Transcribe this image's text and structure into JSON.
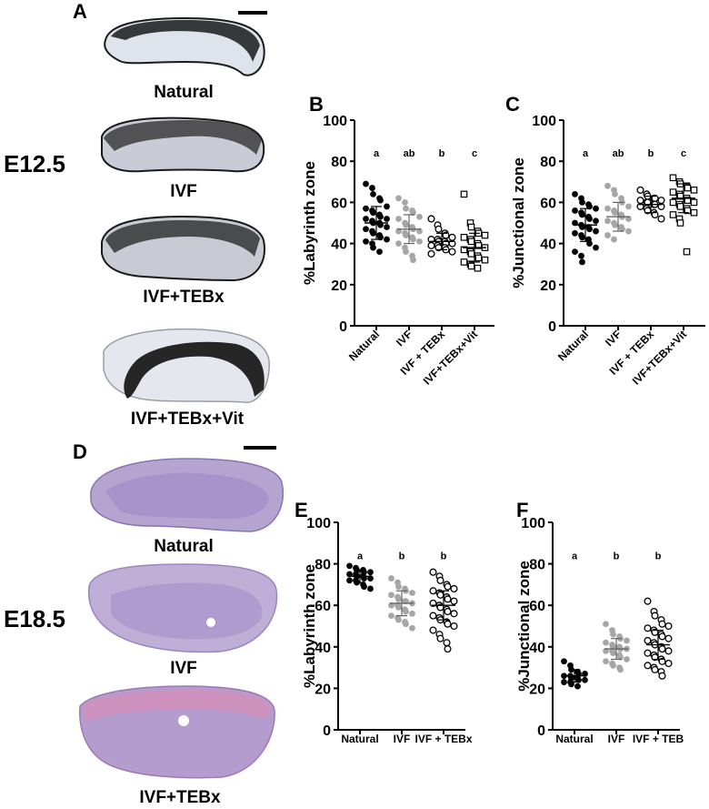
{
  "panels": {
    "A": "A",
    "B": "B",
    "C": "C",
    "D": "D",
    "E": "E",
    "F": "F"
  },
  "stages": {
    "e12": "E12.5",
    "e18": "E18.5"
  },
  "section_labels_a": [
    "Natural",
    "IVF",
    "IVF+TEBx",
    "IVF+TEBx+Vit"
  ],
  "section_labels_d": [
    "Natural",
    "IVF",
    "IVF+TEBx"
  ],
  "colors": {
    "natural": "#000000",
    "ivf": "#a6a6a6",
    "teb": "#000000",
    "he_pink": "#c9a3cf",
    "he_purple": "#8a72b5",
    "stain_dark": "#1a1a1a"
  },
  "chart_data": [
    {
      "id": "B",
      "type": "scatter",
      "ylabel": "%Labyrinth zone",
      "ylim": [
        0,
        100
      ],
      "yticks": [
        "0",
        "20",
        "40",
        "60",
        "80",
        "100"
      ],
      "categories": [
        "Natural",
        "IVF",
        "IVF + TEBx",
        "IVF+TEBx+Vit"
      ],
      "letters": [
        "a",
        "ab",
        "b",
        "c"
      ],
      "rotated": true,
      "series": [
        {
          "name": "Natural",
          "marker": "filled",
          "mean": 50,
          "sd": 8,
          "values": [
            69,
            67,
            64,
            62,
            61,
            58,
            57,
            56,
            55,
            54,
            53,
            52,
            52,
            51,
            50,
            50,
            49,
            48,
            47,
            46,
            45,
            44,
            43,
            42,
            41,
            40,
            38,
            36
          ]
        },
        {
          "name": "IVF",
          "marker": "gray",
          "mean": 47,
          "sd": 7,
          "values": [
            62,
            60,
            57,
            56,
            55,
            53,
            52,
            50,
            49,
            48,
            47,
            46,
            46,
            45,
            44,
            43,
            42,
            41,
            40,
            38,
            36,
            34,
            32
          ]
        },
        {
          "name": "IVF + TEBx",
          "marker": "open",
          "mean": 41,
          "sd": 4,
          "values": [
            52,
            49,
            47,
            45,
            44,
            43,
            42,
            42,
            41,
            41,
            40,
            40,
            39,
            39,
            38,
            38,
            37,
            36,
            35
          ]
        },
        {
          "name": "IVF+TEBx+Vit",
          "marker": "square",
          "mean": 38,
          "sd": 7,
          "values": [
            64,
            50,
            48,
            46,
            45,
            44,
            43,
            42,
            41,
            40,
            39,
            38,
            37,
            36,
            35,
            34,
            33,
            32,
            31,
            30,
            29,
            28
          ]
        }
      ]
    },
    {
      "id": "C",
      "type": "scatter",
      "ylabel": "%Junctional zone",
      "ylim": [
        0,
        100
      ],
      "yticks": [
        "0",
        "20",
        "40",
        "60",
        "80",
        "100"
      ],
      "categories": [
        "Natural",
        "IVF",
        "IVF + TEBx",
        "IVF+TEBx+Vit"
      ],
      "letters": [
        "a",
        "ab",
        "b",
        "c"
      ],
      "rotated": true,
      "series": [
        {
          "name": "Natural",
          "marker": "filled",
          "mean": 49,
          "sd": 8,
          "values": [
            64,
            62,
            60,
            59,
            58,
            57,
            56,
            55,
            54,
            53,
            52,
            51,
            50,
            49,
            48,
            48,
            47,
            46,
            45,
            44,
            43,
            42,
            40,
            38,
            36,
            34,
            31
          ]
        },
        {
          "name": "IVF",
          "marker": "gray",
          "mean": 53,
          "sd": 7,
          "values": [
            68,
            66,
            64,
            62,
            60,
            58,
            57,
            56,
            55,
            54,
            53,
            52,
            51,
            50,
            49,
            48,
            47,
            46,
            44,
            42
          ]
        },
        {
          "name": "IVF + TEBx",
          "marker": "open",
          "mean": 59,
          "sd": 4,
          "values": [
            66,
            64,
            63,
            62,
            62,
            61,
            61,
            60,
            60,
            59,
            59,
            58,
            58,
            57,
            56,
            55,
            54,
            52
          ]
        },
        {
          "name": "IVF+TEBx+Vit",
          "marker": "square",
          "mean": 62,
          "sd": 7,
          "values": [
            72,
            70,
            69,
            68,
            67,
            66,
            65,
            64,
            63,
            62,
            61,
            60,
            60,
            59,
            58,
            57,
            56,
            55,
            54,
            52,
            50,
            36
          ]
        }
      ]
    },
    {
      "id": "E",
      "type": "scatter",
      "ylabel": "%Labyrinth zone",
      "ylim": [
        0,
        100
      ],
      "yticks": [
        "0",
        "20",
        "40",
        "60",
        "80",
        "100"
      ],
      "categories": [
        "Natural",
        "IVF",
        "IVF + TEBx"
      ],
      "letters": [
        "a",
        "b",
        "b"
      ],
      "rotated": false,
      "series": [
        {
          "name": "Natural",
          "marker": "filled",
          "mean": 74,
          "sd": 3,
          "values": [
            79,
            78,
            77,
            77,
            76,
            76,
            75,
            75,
            74,
            74,
            73,
            73,
            72,
            72,
            71,
            70,
            69,
            68
          ]
        },
        {
          "name": "IVF",
          "marker": "gray",
          "mean": 61,
          "sd": 6,
          "values": [
            73,
            71,
            69,
            68,
            67,
            66,
            65,
            64,
            63,
            62,
            62,
            61,
            60,
            60,
            59,
            58,
            57,
            56,
            55,
            54,
            53,
            52,
            51,
            49
          ]
        },
        {
          "name": "IVF + TEBx",
          "marker": "open",
          "mean": 60,
          "sd": 7,
          "values": [
            76,
            74,
            72,
            70,
            69,
            68,
            67,
            66,
            65,
            64,
            63,
            62,
            61,
            60,
            59,
            58,
            57,
            56,
            55,
            54,
            53,
            52,
            51,
            50,
            48,
            46,
            44,
            42,
            39
          ]
        }
      ]
    },
    {
      "id": "F",
      "type": "scatter",
      "ylabel": "%Junctional zone",
      "ylim": [
        0,
        100
      ],
      "yticks": [
        "0",
        "20",
        "40",
        "60",
        "80",
        "100"
      ],
      "categories": [
        "Natural",
        "IVF",
        "IVF + TEB"
      ],
      "letters": [
        "a",
        "b",
        "b"
      ],
      "rotated": false,
      "series": [
        {
          "name": "Natural",
          "marker": "filled",
          "mean": 26,
          "sd": 3,
          "values": [
            33,
            31,
            29,
            28,
            27,
            27,
            26,
            26,
            25,
            25,
            24,
            24,
            23,
            23,
            22,
            21
          ]
        },
        {
          "name": "IVF",
          "marker": "gray",
          "mean": 39,
          "sd": 5,
          "values": [
            51,
            48,
            46,
            45,
            44,
            43,
            42,
            41,
            40,
            40,
            39,
            39,
            38,
            38,
            37,
            36,
            35,
            34,
            33,
            32,
            31,
            30,
            29
          ]
        },
        {
          "name": "IVF + TEB",
          "marker": "open",
          "mean": 41,
          "sd": 7,
          "values": [
            62,
            57,
            55,
            53,
            51,
            50,
            49,
            48,
            47,
            46,
            45,
            44,
            43,
            42,
            41,
            40,
            39,
            38,
            37,
            36,
            35,
            34,
            33,
            32,
            31,
            30,
            29,
            28,
            26
          ]
        }
      ]
    }
  ]
}
